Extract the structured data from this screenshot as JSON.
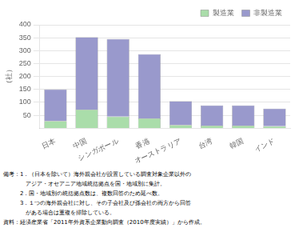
{
  "chart_data": {
    "type": "bar",
    "stacked": true,
    "categories": [
      "日本",
      "中国",
      "シンガポール",
      "香港",
      "オーストラリア",
      "台湾",
      "韓国",
      "インド"
    ],
    "series": [
      {
        "name": "製造業",
        "color": "#aaddaa",
        "values": [
          28,
          72,
          45,
          38,
          12,
          10,
          10,
          8
        ]
      },
      {
        "name": "非製造業",
        "color": "#9999cc",
        "values": [
          122,
          280,
          300,
          248,
          92,
          78,
          78,
          68
        ]
      }
    ],
    "ylabel": "（社）",
    "ylim": [
      0,
      400
    ],
    "yticks": [
      50,
      100,
      150,
      200,
      250,
      300,
      350,
      400
    ],
    "grid": true,
    "legend": "upper right",
    "annotations": [
      "備考：1．（日本を除いて）海外親会社が設置している調査対象企業以外の",
      "　　　　アジア・オセアニア地域統括拠点を国・地域別に集計。",
      "　　　2．国・地域別の統括拠点数は、複数回答のため延べ数。",
      "　　　3．１つの海外親会社に対し、その子会社及び孫会社の両方から回答",
      "　　　　がある場合は重複を排除している。",
      "資料：経済産業省「2011年外資系企業動向調査（2010年度実績）」から作成。"
    ]
  }
}
